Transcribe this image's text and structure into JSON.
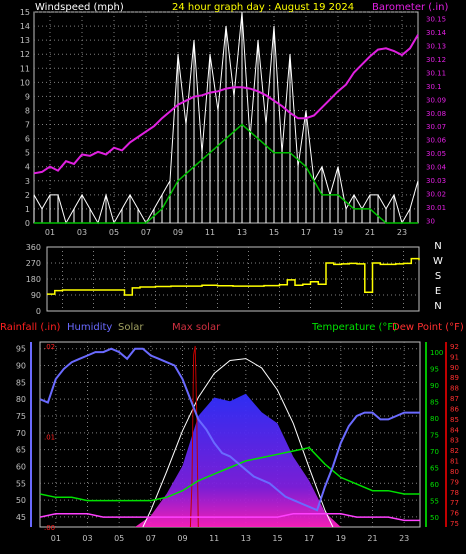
{
  "chart_data": [
    {
      "type": "line",
      "title": "24 hour graph day : August 19 2024",
      "ylabel_left": "Windspeed (mph)",
      "ylabel_right": "Barometer (.in)",
      "x_ticks": [
        "01",
        "03",
        "05",
        "07",
        "09",
        "11",
        "13",
        "15",
        "17",
        "19",
        "21",
        "23"
      ],
      "left_ticks": [
        "0",
        "1",
        "2",
        "3",
        "4",
        "5",
        "6",
        "7",
        "8",
        "9",
        "10",
        "11",
        "12",
        "13",
        "14",
        "15"
      ],
      "right_ticks": [
        "30",
        "30.01",
        "30.02",
        "30.03",
        "30.04",
        "30.05",
        "30.06",
        "30.07",
        "30.08",
        "30.09",
        "30.1",
        "30.11",
        "30.12",
        "30.13",
        "30.14",
        "30.15"
      ],
      "ylim_left": [
        0,
        15
      ],
      "ylim_right": [
        29.998,
        30.155
      ],
      "grid": true,
      "series": [
        {
          "name": "Barometer (.in)",
          "color": "#e020e0",
          "x": [
            0,
            0.5,
            1,
            1.5,
            2,
            2.5,
            3,
            3.5,
            4,
            4.5,
            5,
            5.5,
            6,
            6.5,
            7,
            7.5,
            8,
            8.5,
            9,
            9.5,
            10,
            10.5,
            11,
            11.5,
            12,
            12.5,
            13,
            13.5,
            14,
            14.5,
            15,
            15.5,
            16,
            16.5,
            17,
            17.5,
            18,
            18.5,
            19,
            19.5,
            20,
            20.5,
            21,
            21.5,
            22,
            22.5,
            23,
            23.5,
            24
          ],
          "values": [
            30.035,
            30.036,
            30.04,
            30.037,
            30.044,
            30.042,
            30.049,
            30.048,
            30.051,
            30.049,
            30.054,
            30.052,
            30.058,
            30.062,
            30.066,
            30.07,
            30.076,
            30.081,
            30.086,
            30.089,
            30.092,
            30.093,
            30.095,
            30.096,
            30.098,
            30.099,
            30.099,
            30.098,
            30.096,
            30.093,
            30.089,
            30.085,
            30.08,
            30.076,
            30.076,
            30.078,
            30.084,
            30.09,
            30.096,
            30.101,
            30.11,
            30.116,
            30.122,
            30.127,
            30.128,
            30.126,
            30.123,
            30.128,
            30.138
          ]
        },
        {
          "name": "Windspeed",
          "color": "#ffffff",
          "x": [
            0,
            0.5,
            1,
            1.5,
            2,
            2.5,
            3,
            3.5,
            4,
            4.5,
            5,
            5.5,
            6,
            6.5,
            7,
            7.5,
            8,
            8.5,
            9,
            9.5,
            10,
            10.5,
            11,
            11.5,
            12,
            12.5,
            13,
            13.5,
            14,
            14.5,
            15,
            15.5,
            16,
            16.5,
            17,
            17.5,
            18,
            18.5,
            19,
            19.5,
            20,
            20.5,
            21,
            21.5,
            22,
            22.5,
            23,
            23.5,
            24
          ],
          "values": [
            2,
            1,
            2,
            2,
            0,
            1,
            2,
            1,
            0,
            2,
            0,
            1,
            2,
            1,
            0,
            1,
            2,
            3,
            12,
            7,
            13,
            5,
            12,
            8,
            14,
            9,
            15,
            6,
            13,
            7,
            14,
            5,
            12,
            4,
            8,
            3,
            4,
            2,
            4,
            1,
            2,
            1,
            2,
            2,
            1,
            2,
            0,
            1,
            3
          ]
        },
        {
          "name": "Wind average",
          "color": "#00c000",
          "x": [
            0,
            1,
            2,
            3,
            4,
            5,
            6,
            7,
            8,
            9,
            10,
            11,
            12,
            13,
            14,
            15,
            16,
            17,
            18,
            19,
            20,
            21,
            22,
            23,
            24
          ],
          "values": [
            0,
            0,
            0,
            0,
            0,
            0,
            0,
            0,
            1,
            3,
            4,
            5,
            6,
            7,
            6,
            5,
            5,
            4,
            2,
            2,
            1,
            1,
            0,
            0,
            0
          ]
        }
      ]
    },
    {
      "type": "line",
      "title": "",
      "ylabel_right": "N W S E N",
      "left_ticks": [
        "360",
        "270",
        "180",
        "90",
        "0"
      ],
      "right_labels": [
        "N",
        "W",
        "S",
        "E",
        "N"
      ],
      "x_ticks": [
        "01",
        "03",
        "05",
        "07",
        "09",
        "11",
        "13",
        "15",
        "17",
        "19",
        "21",
        "23"
      ],
      "ylim_left": [
        0,
        360
      ],
      "grid": true,
      "series": [
        {
          "name": "Wind direction",
          "color": "#ffff00",
          "x": [
            0,
            0.5,
            1,
            2,
            3,
            4,
            4.5,
            5,
            5.5,
            6,
            7,
            8,
            9,
            10,
            11,
            12,
            13,
            14,
            15,
            15.5,
            16,
            16.5,
            17,
            17.5,
            18,
            18.5,
            19,
            19.5,
            20,
            20.5,
            21,
            21.5,
            22,
            22.5,
            23,
            23.5,
            24
          ],
          "values": [
            95,
            115,
            118,
            118,
            118,
            118,
            118,
            90,
            130,
            135,
            138,
            140,
            140,
            145,
            142,
            140,
            140,
            143,
            148,
            175,
            145,
            150,
            165,
            150,
            270,
            262,
            265,
            268,
            265,
            105,
            270,
            262,
            262,
            265,
            268,
            295,
            285
          ]
        }
      ]
    },
    {
      "type": "line",
      "title": "",
      "labels": [
        "Rainfall (.in)",
        "Humidity",
        "Solar",
        "Max solar",
        "Temperature (°F)",
        "Dew Point (°F)"
      ],
      "x_ticks": [
        "01",
        "03",
        "05",
        "07",
        "09",
        "11",
        "13",
        "15",
        "17",
        "19",
        "21",
        "23"
      ],
      "humidity_ticks": [
        "45",
        "50",
        "55",
        "60",
        "65",
        "70",
        "75",
        "80",
        "85",
        "90",
        "95"
      ],
      "rain_ticks": [
        ".00",
        ".01",
        ".02"
      ],
      "temp_ticks": [
        "50",
        "55",
        "60",
        "65",
        "70",
        "75",
        "80",
        "85",
        "90",
        "95",
        "100"
      ],
      "dew_ticks": [
        "75",
        "76",
        "77",
        "78",
        "79",
        "80",
        "81",
        "82",
        "83",
        "84",
        "85",
        "86",
        "87",
        "88",
        "89",
        "90",
        "91",
        "92"
      ],
      "ylim_humidity": [
        42,
        97
      ],
      "ylim_temp": [
        47,
        103
      ],
      "ylim_solar": [
        0,
        1000
      ],
      "grid": true,
      "series": [
        {
          "name": "Humidity",
          "color": "#6a6aff",
          "x": [
            0,
            0.5,
            1,
            1.5,
            2,
            2.5,
            3,
            3.5,
            4,
            4.5,
            5,
            5.5,
            6,
            6.5,
            7,
            7.5,
            8,
            8.5,
            9,
            9.5,
            10,
            10.5,
            11,
            11.5,
            12,
            12.5,
            13,
            13.5,
            14,
            14.5,
            15,
            15.5,
            16,
            16.5,
            17,
            17.5,
            18,
            18.5,
            19,
            19.5,
            20,
            20.5,
            21,
            21.5,
            22,
            22.5,
            23,
            23.5,
            24
          ],
          "values": [
            80,
            79,
            86,
            89,
            91,
            92,
            93,
            94,
            94,
            95,
            94,
            92,
            95,
            95,
            93,
            92,
            91,
            90,
            86,
            80,
            74,
            71,
            67,
            64,
            63,
            61,
            59,
            57,
            56,
            55,
            53,
            51,
            50,
            49,
            48,
            47,
            54,
            60,
            67,
            72,
            75,
            76,
            76,
            74,
            74,
            75,
            76,
            76,
            76
          ]
        },
        {
          "name": "Temperature (°F)",
          "color": "#00e000",
          "x": [
            0,
            1,
            2,
            3,
            4,
            5,
            6,
            7,
            8,
            9,
            10,
            11,
            12,
            13,
            14,
            15,
            16,
            17,
            18,
            19,
            20,
            21,
            22,
            23,
            24
          ],
          "values": [
            57,
            56,
            56,
            55,
            55,
            55,
            55,
            55,
            56,
            58,
            61,
            63,
            65,
            67,
            68,
            69,
            70,
            71,
            66,
            62,
            60,
            58,
            58,
            57,
            57
          ]
        },
        {
          "name": "Dew Point (°F)",
          "color": "#ff40ff",
          "x": [
            0,
            1,
            2,
            3,
            4,
            5,
            6,
            7,
            8,
            9,
            10,
            11,
            12,
            13,
            14,
            15,
            16,
            17,
            18,
            19,
            20,
            21,
            22,
            23,
            24
          ],
          "values": [
            50,
            51,
            51,
            51,
            50,
            50,
            50,
            50,
            50,
            50,
            50,
            50,
            50,
            50,
            50,
            50,
            51,
            51,
            51,
            51,
            50,
            50,
            50,
            49,
            49
          ]
        },
        {
          "name": "Solar",
          "color": "#5050ff",
          "x": [
            6,
            7,
            8,
            9,
            10,
            11,
            12,
            13,
            14,
            15,
            16,
            17,
            18,
            19
          ],
          "values": [
            0,
            60,
            180,
            330,
            600,
            700,
            680,
            720,
            620,
            560,
            380,
            250,
            80,
            0
          ]
        },
        {
          "name": "Max solar",
          "color": "#ffffff",
          "x": [
            6.5,
            7,
            8,
            9,
            10,
            11,
            12,
            13,
            14,
            15,
            16,
            17,
            18,
            18.5
          ],
          "values": [
            0,
            90,
            300,
            520,
            700,
            830,
            900,
            910,
            860,
            740,
            560,
            320,
            90,
            0
          ]
        },
        {
          "name": "Rainfall (.in)",
          "color": "#c00000",
          "x": [
            9.5,
            9.6,
            9.7,
            9.8,
            9.9,
            10
          ],
          "values": [
            0,
            0.005,
            0.019,
            0.02,
            0.012,
            0
          ]
        }
      ]
    }
  ]
}
